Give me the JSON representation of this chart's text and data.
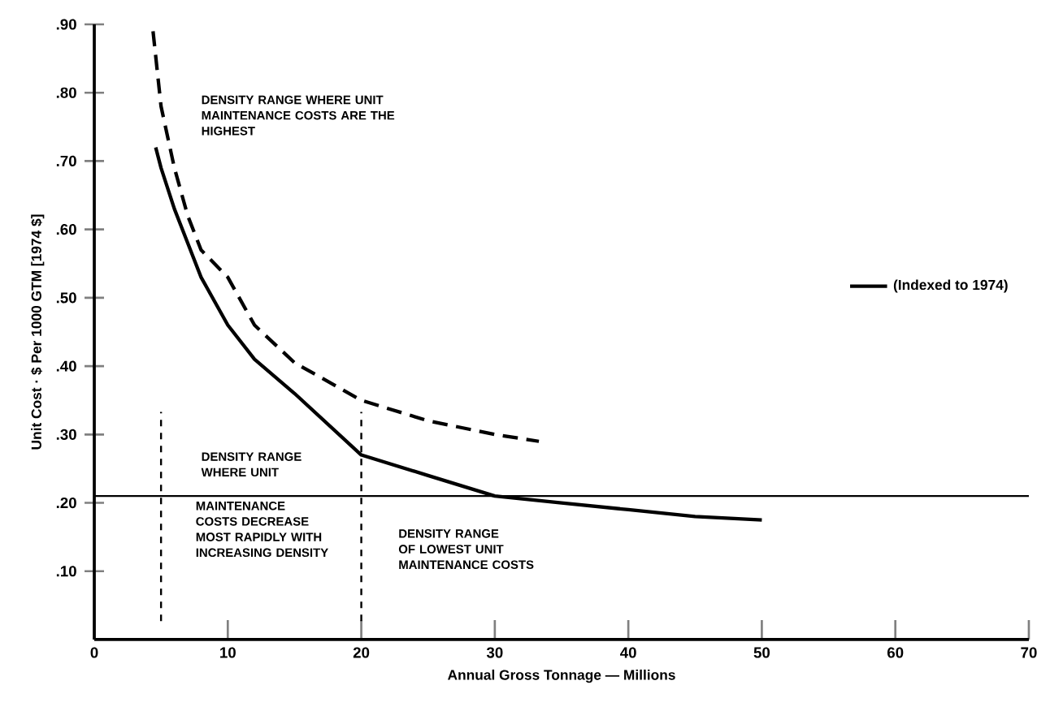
{
  "chart_data": {
    "type": "line",
    "xlabel": "Annual Gross Tonnage — Millions",
    "ylabel": "Unit Cost · $ Per 1000 GTM [1974 $]",
    "xlim": [
      0,
      70
    ],
    "ylim": [
      0,
      0.9
    ],
    "xticks": [
      0,
      10,
      20,
      30,
      40,
      50,
      60,
      70
    ],
    "yticks": [
      {
        "value": 0.1,
        "label": ".10"
      },
      {
        "value": 0.2,
        "label": ".20"
      },
      {
        "value": 0.3,
        "label": ".30"
      },
      {
        "value": 0.4,
        "label": ".40"
      },
      {
        "value": 0.5,
        "label": ".50"
      },
      {
        "value": 0.6,
        "label": ".60"
      },
      {
        "value": 0.7,
        "label": ".70"
      },
      {
        "value": 0.8,
        "label": ".80"
      },
      {
        "value": 0.9,
        "label": ".90"
      }
    ],
    "series": [
      {
        "color": "#000000",
        "line_style": "dashed",
        "x": [
          4.4,
          5,
          6,
          7,
          8,
          10,
          12,
          15,
          20,
          25,
          30,
          33.3
        ],
        "values": [
          0.89,
          0.78,
          0.69,
          0.62,
          0.57,
          0.53,
          0.46,
          0.405,
          0.35,
          0.32,
          0.3,
          0.29
        ]
      },
      {
        "name": "(Indexed to 1974)",
        "color": "#000000",
        "line_style": "solid",
        "x": [
          4.6,
          5,
          6,
          7,
          8,
          10,
          12,
          15,
          20,
          25,
          30,
          35,
          40,
          45,
          50
        ],
        "values": [
          0.72,
          0.69,
          0.63,
          0.58,
          0.53,
          0.46,
          0.41,
          0.36,
          0.27,
          0.24,
          0.21,
          0.2,
          0.19,
          0.18,
          0.175
        ]
      }
    ],
    "ref_lines": [
      {
        "axis": "x",
        "value": 5,
        "line_style": "dashed"
      },
      {
        "axis": "x",
        "value": 20,
        "line_style": "dashed"
      },
      {
        "axis": "y",
        "value": 0.21,
        "line_style": "solid"
      }
    ],
    "annotations": [
      "DENSITY RANGE WHERE UNIT MAINTENANCE COSTS ARE THE HIGHEST",
      "DENSITY RANGE WHERE UNIT",
      "MAINTENANCE COSTS DECREASE MOST RAPIDLY WITH INCREASING DENSITY",
      "DENSITY RANGE OF LOWEST UNIT MAINTENANCE COSTS"
    ],
    "grid": false,
    "legend": "right",
    "marker": "none"
  }
}
